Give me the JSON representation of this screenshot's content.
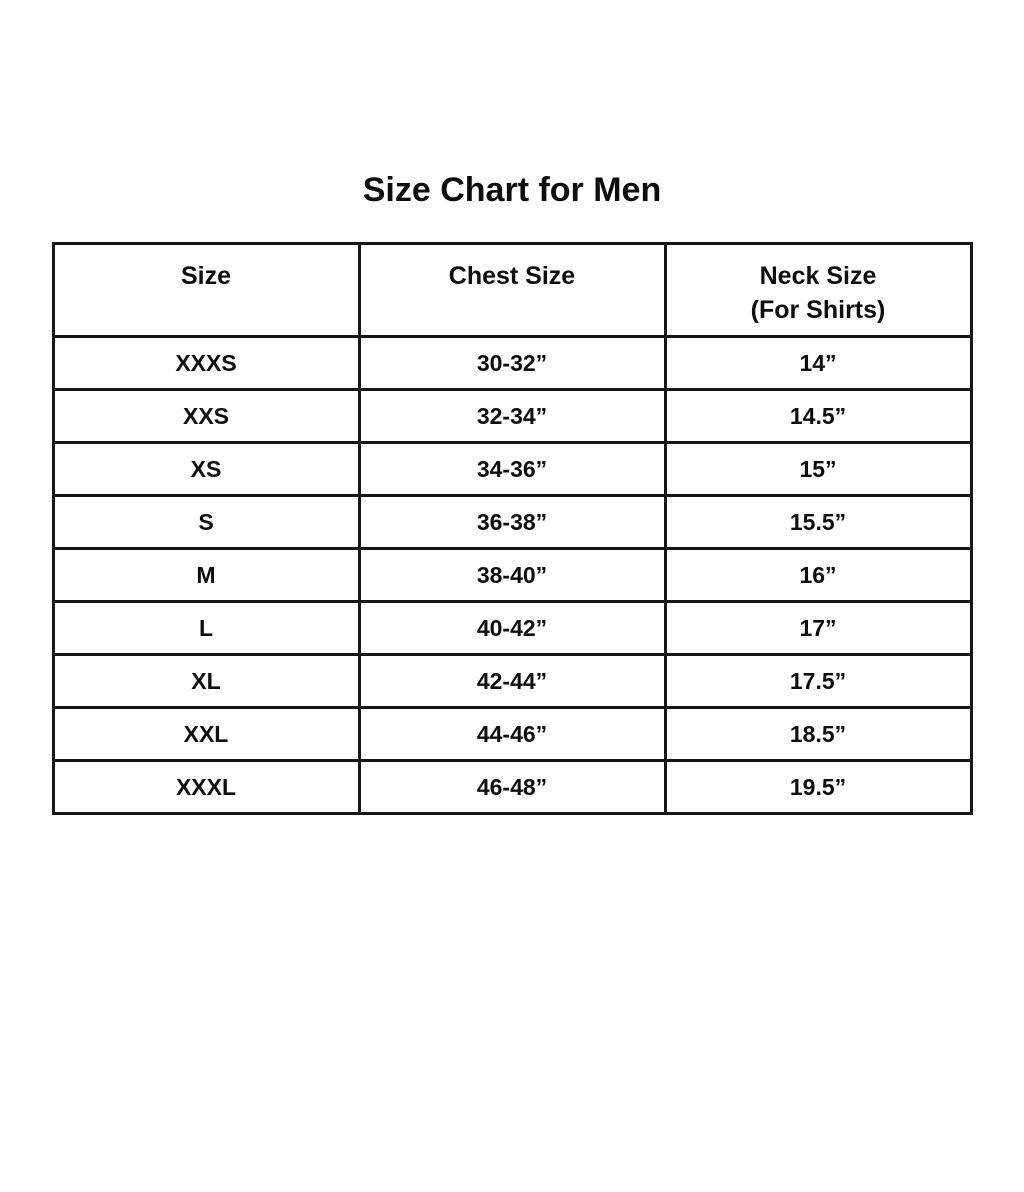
{
  "title": "Size Chart for Men",
  "colors": {
    "background": "#ffffff",
    "text": "#0d0d0d",
    "border": "#161616"
  },
  "table": {
    "headers": [
      {
        "line1": "Size",
        "line2": ""
      },
      {
        "line1": "Chest Size",
        "line2": ""
      },
      {
        "line1": "Neck Size",
        "line2": "(For Shirts)"
      }
    ],
    "rows": [
      {
        "size": "XXXS",
        "chest": "30-32”",
        "neck": "14”"
      },
      {
        "size": "XXS",
        "chest": "32-34”",
        "neck": "14.5”"
      },
      {
        "size": "XS",
        "chest": "34-36”",
        "neck": "15”"
      },
      {
        "size": "S",
        "chest": "36-38”",
        "neck": "15.5”"
      },
      {
        "size": "M",
        "chest": "38-40”",
        "neck": "16”"
      },
      {
        "size": "L",
        "chest": "40-42”",
        "neck": "17”"
      },
      {
        "size": "XL",
        "chest": "42-44”",
        "neck": "17.5”"
      },
      {
        "size": "XXL",
        "chest": "44-46”",
        "neck": "18.5”"
      },
      {
        "size": "XXXL",
        "chest": "46-48”",
        "neck": "19.5”"
      }
    ]
  },
  "chart_data": {
    "type": "table",
    "title": "Size Chart for Men",
    "columns": [
      "Size",
      "Chest Size",
      "Neck Size (For Shirts)"
    ],
    "rows": [
      [
        "XXXS",
        "30-32”",
        "14”"
      ],
      [
        "XXS",
        "32-34”",
        "14.5”"
      ],
      [
        "XS",
        "34-36”",
        "15”"
      ],
      [
        "S",
        "36-38”",
        "15.5”"
      ],
      [
        "M",
        "38-40”",
        "16”"
      ],
      [
        "L",
        "40-42”",
        "17”"
      ],
      [
        "XL",
        "42-44”",
        "17.5”"
      ],
      [
        "XXL",
        "44-46”",
        "18.5”"
      ],
      [
        "XXXL",
        "46-48”",
        "19.5”"
      ]
    ]
  }
}
